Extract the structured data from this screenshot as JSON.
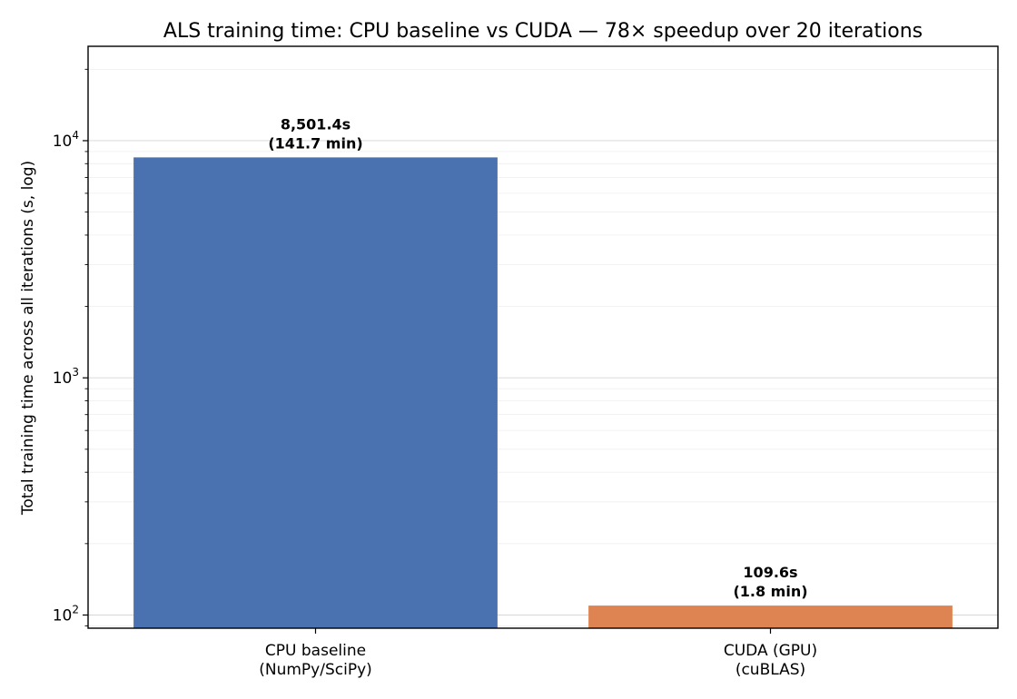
{
  "chart_data": {
    "type": "bar",
    "title": "ALS training time: CPU baseline vs CUDA  —  78× speedup over 20 iterations",
    "ylabel": "Total training time across all iterations (s, log)",
    "xlabel": "",
    "yscale": "log",
    "ylim": [
      88,
      25000
    ],
    "grid": true,
    "categories": [
      [
        "CPU baseline",
        "(NumPy/SciPy)"
      ],
      [
        "CUDA (GPU)",
        "(cuBLAS)"
      ]
    ],
    "values": [
      8501.4,
      109.6
    ],
    "colors": [
      "#4a72b0",
      "#dd8452"
    ],
    "data_labels": [
      [
        "8,501.4s",
        "(141.7 min)"
      ],
      [
        "109.6s",
        "(1.8 min)"
      ]
    ],
    "yticks": [
      {
        "base": "10",
        "exp": "2",
        "value": 100
      },
      {
        "base": "10",
        "exp": "3",
        "value": 1000
      },
      {
        "base": "10",
        "exp": "4",
        "value": 10000
      }
    ]
  }
}
